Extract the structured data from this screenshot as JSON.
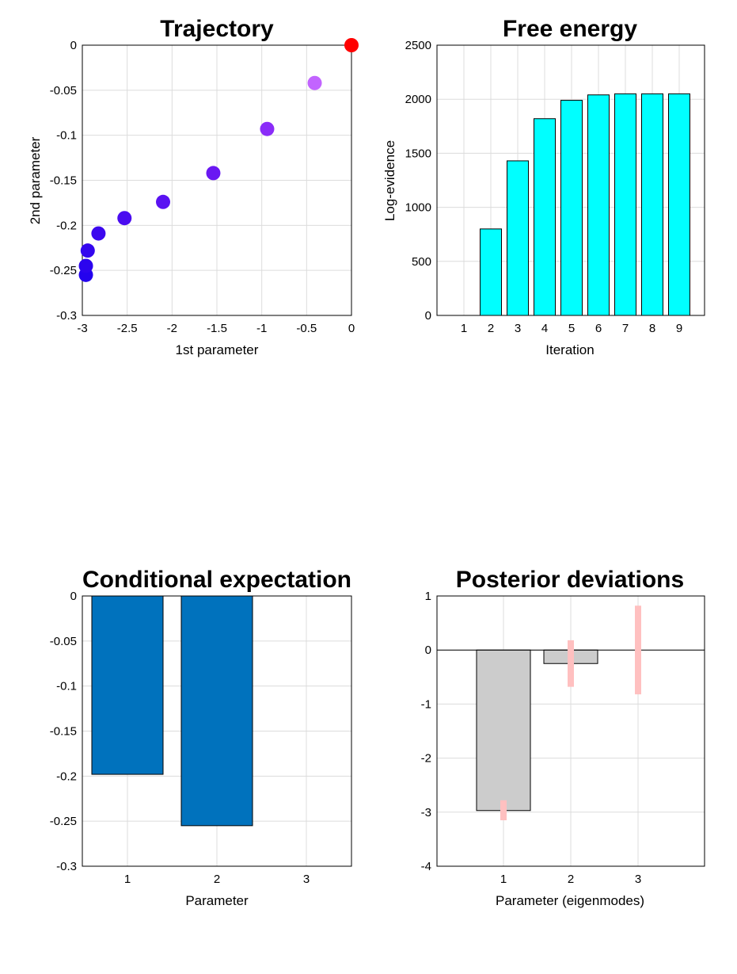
{
  "colors": {
    "trajectory_start": "#ff0000",
    "free_energy_bar": "#00ffff",
    "expectation_bar": "#0072bd",
    "deviation_bar": "#cccccc",
    "deviation_error": "#ffc0c0"
  },
  "chart_data": [
    {
      "id": "trajectory",
      "type": "scatter",
      "title": "Trajectory",
      "xlabel": "1st parameter",
      "ylabel": "2nd parameter",
      "xlim": [
        -3,
        0
      ],
      "ylim": [
        -0.3,
        0
      ],
      "xticks": [
        "-3",
        "-2.5",
        "-2",
        "-1.5",
        "-1",
        "-0.5",
        "0"
      ],
      "yticks": [
        "-0.3",
        "-0.25",
        "-0.2",
        "-0.15",
        "-0.1",
        "-0.05",
        "0"
      ],
      "grid": true,
      "points": [
        {
          "x": 0,
          "y": 0,
          "color": "#ff0000"
        },
        {
          "x": -0.41,
          "y": -0.042,
          "color": "#c264ff"
        },
        {
          "x": -0.94,
          "y": -0.093,
          "color": "#8a2cf8"
        },
        {
          "x": -1.54,
          "y": -0.142,
          "color": "#6a18f2"
        },
        {
          "x": -2.1,
          "y": -0.174,
          "color": "#5a12f2"
        },
        {
          "x": -2.53,
          "y": -0.192,
          "color": "#4a0cf0"
        },
        {
          "x": -2.82,
          "y": -0.209,
          "color": "#3c08ee"
        },
        {
          "x": -2.94,
          "y": -0.228,
          "color": "#3306ee"
        },
        {
          "x": -2.96,
          "y": -0.245,
          "color": "#2c04ee"
        },
        {
          "x": -2.96,
          "y": -0.255,
          "color": "#2402ee"
        }
      ]
    },
    {
      "id": "free-energy",
      "type": "bar",
      "title": "Free energy",
      "xlabel": "Iteration",
      "ylabel": "Log-evidence",
      "categories": [
        "1",
        "2",
        "3",
        "4",
        "5",
        "6",
        "7",
        "8",
        "9"
      ],
      "values": [
        0,
        800,
        1430,
        1820,
        1990,
        2040,
        2050,
        2050,
        2050
      ],
      "ylim": [
        0,
        2500
      ],
      "yticks": [
        "0",
        "500",
        "1000",
        "1500",
        "2000",
        "2500"
      ],
      "grid": true
    },
    {
      "id": "conditional-expectation",
      "type": "bar",
      "title": "Conditional expectation",
      "xlabel": "Parameter",
      "ylabel": "",
      "categories": [
        "1",
        "2",
        "3"
      ],
      "values": [
        -0.198,
        -0.255,
        0
      ],
      "ylim": [
        -0.3,
        0
      ],
      "yticks": [
        "-0.3",
        "-0.25",
        "-0.2",
        "-0.15",
        "-0.1",
        "-0.05",
        "0"
      ],
      "grid": true
    },
    {
      "id": "posterior-deviations",
      "type": "bar",
      "title": "Posterior deviations",
      "xlabel": "Parameter (eigenmodes)",
      "ylabel": "",
      "categories": [
        "1",
        "2",
        "3"
      ],
      "values": [
        -2.97,
        -0.25,
        0
      ],
      "errors": [
        [
          -3.15,
          -2.78
        ],
        [
          -0.68,
          0.18
        ],
        [
          -0.82,
          0.82
        ]
      ],
      "ylim": [
        -4,
        1
      ],
      "yticks": [
        "-4",
        "-3",
        "-2",
        "-1",
        "0",
        "1"
      ],
      "grid": true
    }
  ]
}
